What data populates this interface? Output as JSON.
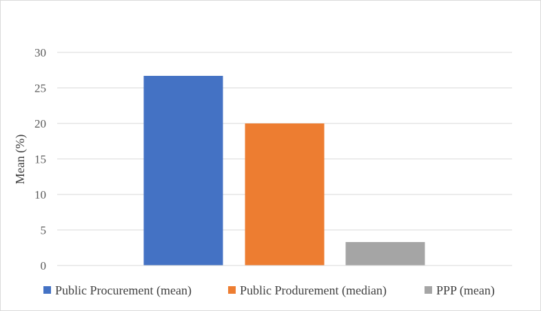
{
  "chart_data": {
    "type": "bar",
    "categories": [
      "Public Procurement (mean)",
      "Public Produrement (median)",
      "PPP (mean)"
    ],
    "values": [
      26.7,
      20.0,
      3.3
    ],
    "colors": [
      "#4472c4",
      "#ed7d31",
      "#a5a5a5"
    ],
    "title": "",
    "xlabel": "",
    "ylabel": "Mean (%)",
    "ylim": [
      0,
      30
    ],
    "yticks": [
      "0",
      "5",
      "10",
      "15",
      "20",
      "25",
      "30"
    ],
    "grid": true,
    "legend_position": "bottom"
  }
}
